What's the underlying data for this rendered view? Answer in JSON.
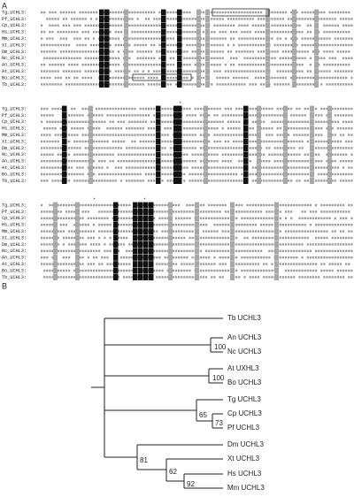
{
  "panels": {
    "a": "A",
    "b": "B"
  },
  "alignment": {
    "labels": [
      "Tg_UCHL3:",
      "Pf_UCHL3:",
      "Cp_UCHL3:",
      "Hs_UCHL3:",
      "Mm_UCHL3:",
      "Xt_UCHL3:",
      "Dm_UCHL3:",
      "Nc_UCHL3:",
      "An_UCHL3:",
      "At_UCHL3:",
      "Bo_UCHL3:",
      "Tb_UCHL3:"
    ],
    "asterisk": "*"
  },
  "tree": {
    "leaves": [
      "Tb UCHL3",
      "An UCHL3",
      "Nc UCHL3",
      "At UXHL3",
      "Bo UCHL3",
      "Tg UCHL3",
      "Cp UCHL3",
      "Pf UCHL3",
      "Dm UCHL3",
      "Xt UCHL3",
      "Hs UCHL3",
      "Mm UCHL3"
    ],
    "bootstrap": [
      "100",
      "100",
      "65",
      "73",
      "81",
      "62",
      "92"
    ]
  }
}
